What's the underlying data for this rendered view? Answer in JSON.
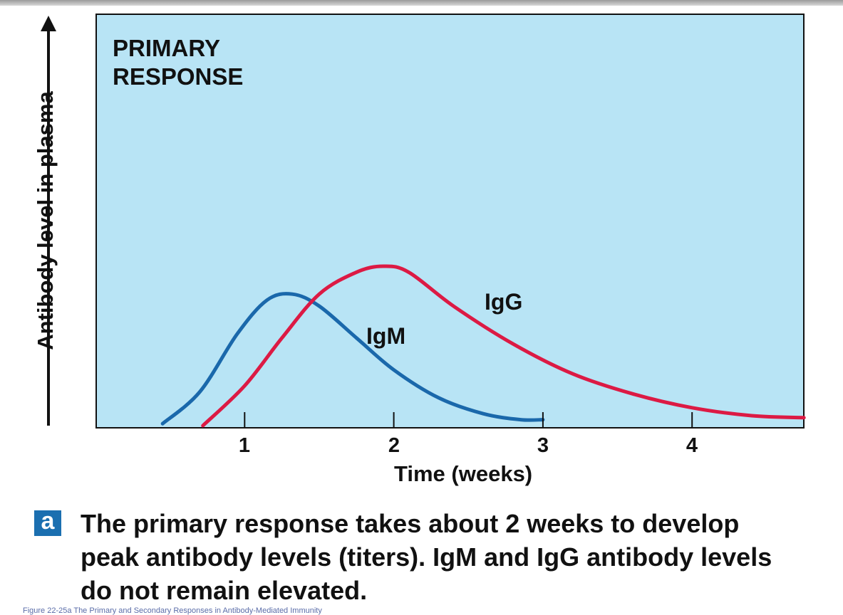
{
  "chart_data": {
    "type": "line",
    "title": "PRIMARY RESPONSE",
    "xlabel": "Time (weeks)",
    "ylabel": "Antibody level in plasma",
    "xticks": [
      "1",
      "2",
      "3",
      "4"
    ],
    "xlim": [
      0,
      4.75
    ],
    "ylim": [
      0,
      1
    ],
    "background": "#b8e4f5",
    "series": [
      {
        "name": "IgM",
        "color": "#1a68ab",
        "x": [
          0.45,
          0.7,
          0.95,
          1.15,
          1.32,
          1.5,
          1.75,
          2.0,
          2.3,
          2.6,
          2.85,
          3.0
        ],
        "y": [
          0.01,
          0.17,
          0.46,
          0.63,
          0.66,
          0.6,
          0.44,
          0.28,
          0.14,
          0.06,
          0.03,
          0.03
        ]
      },
      {
        "name": "IgG",
        "color": "#dc1a44",
        "x": [
          0.72,
          1.0,
          1.25,
          1.5,
          1.75,
          1.93,
          2.1,
          2.4,
          2.8,
          3.2,
          3.6,
          4.0,
          4.4,
          4.75
        ],
        "y": [
          0.0,
          0.2,
          0.44,
          0.66,
          0.77,
          0.8,
          0.77,
          0.6,
          0.41,
          0.26,
          0.16,
          0.09,
          0.05,
          0.04
        ]
      }
    ],
    "panel_label": "a",
    "caption": "The primary response takes about 2 weeks to develop peak antibody levels (titers). IgM and IgG antibody levels do not remain elevated."
  },
  "footer": "Figure 22-25a The Primary and Secondary Responses in Antibody-Mediated Immunity"
}
